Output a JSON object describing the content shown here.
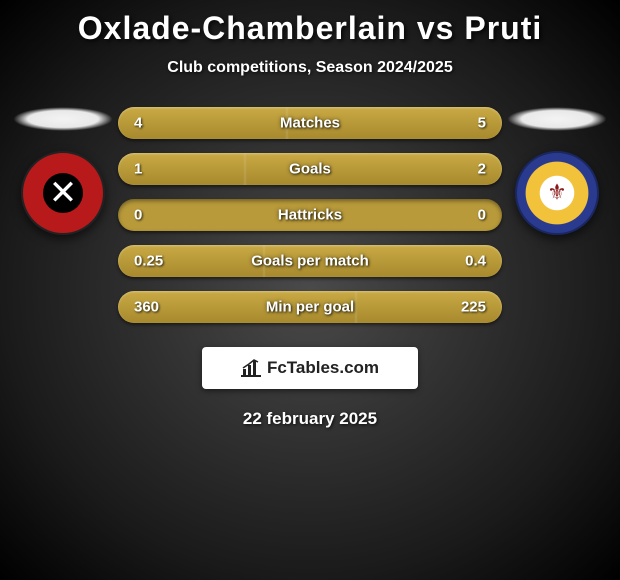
{
  "title": "Oxlade-Chamberlain vs Pruti",
  "subtitle": "Club competitions, Season 2024/2025",
  "date": "22 february 2025",
  "watermark": "FcTables.com",
  "colors": {
    "bar_base": "#b89a3a",
    "bar_fill": "#c9aa44",
    "background_center": "#4a4a4a",
    "background_edge": "#000000",
    "text": "#ffffff"
  },
  "stats": [
    {
      "label": "Matches",
      "left_val": "4",
      "right_val": "5",
      "left_pct": 44,
      "right_pct": 56
    },
    {
      "label": "Goals",
      "left_val": "1",
      "right_val": "2",
      "left_pct": 33,
      "right_pct": 67
    },
    {
      "label": "Hattricks",
      "left_val": "0",
      "right_val": "0",
      "left_pct": 0,
      "right_pct": 0
    },
    {
      "label": "Goals per match",
      "left_val": "0.25",
      "right_val": "0.4",
      "left_pct": 38,
      "right_pct": 62
    },
    {
      "label": "Min per goal",
      "left_val": "360",
      "right_val": "225",
      "left_pct": 62,
      "right_pct": 38
    }
  ]
}
